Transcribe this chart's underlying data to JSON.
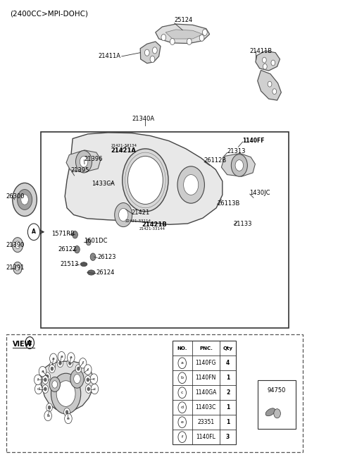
{
  "title": "(2400CC>MPI-DOHC)",
  "bg_color": "#ffffff",
  "table_data": [
    [
      "NO.",
      "PNC.",
      "Qty"
    ],
    [
      "a",
      "1140FG",
      "4"
    ],
    [
      "b",
      "1140FN",
      "1"
    ],
    [
      "c",
      "1140GA",
      "2"
    ],
    [
      "d",
      "11403C",
      "1"
    ],
    [
      "e",
      "23351",
      "1"
    ],
    [
      "f",
      "1140FL",
      "3"
    ]
  ],
  "part_94750": "94750"
}
